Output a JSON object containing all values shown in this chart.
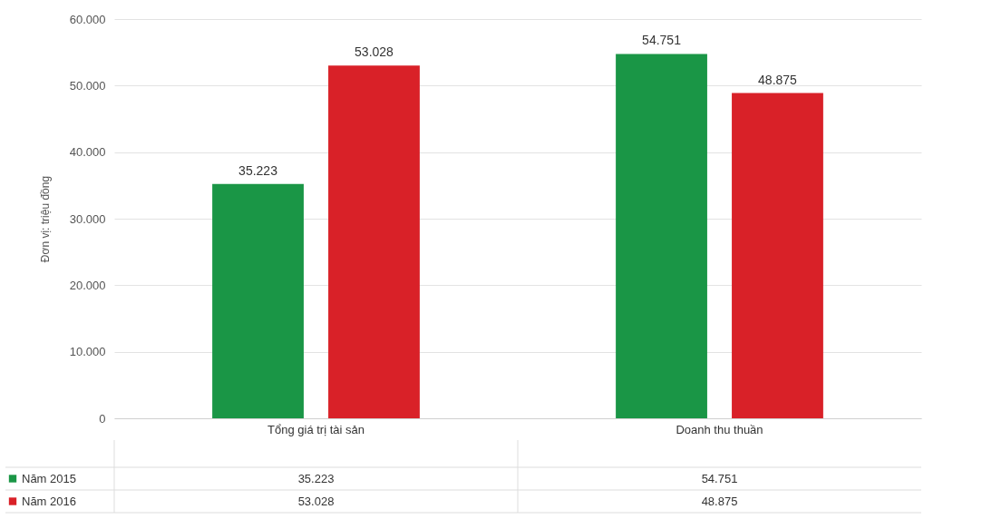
{
  "chart_data": {
    "type": "bar",
    "ylabel": "Đơn vị: triệu đồng",
    "categories": [
      "Tổng giá trị tài sản",
      "Doanh thu thuần"
    ],
    "series": [
      {
        "name": "Năm 2015",
        "color": "#1a9646",
        "values": [
          35223,
          54751
        ],
        "value_labels": [
          "35.223",
          "54.751"
        ]
      },
      {
        "name": "Năm 2016",
        "color": "#d92128",
        "values": [
          53028,
          48875
        ],
        "value_labels": [
          "53.028",
          "48.875"
        ]
      }
    ],
    "ylim": [
      0,
      60000
    ],
    "yticks": [
      {
        "value": 0,
        "label": "0"
      },
      {
        "value": 10000,
        "label": "10.000"
      },
      {
        "value": 20000,
        "label": "20.000"
      },
      {
        "value": 30000,
        "label": "30.000"
      },
      {
        "value": 40000,
        "label": "40.000"
      },
      {
        "value": 50000,
        "label": "50.000"
      },
      {
        "value": 60000,
        "label": "60.000"
      }
    ],
    "grid": "y",
    "legend": "bottom"
  }
}
